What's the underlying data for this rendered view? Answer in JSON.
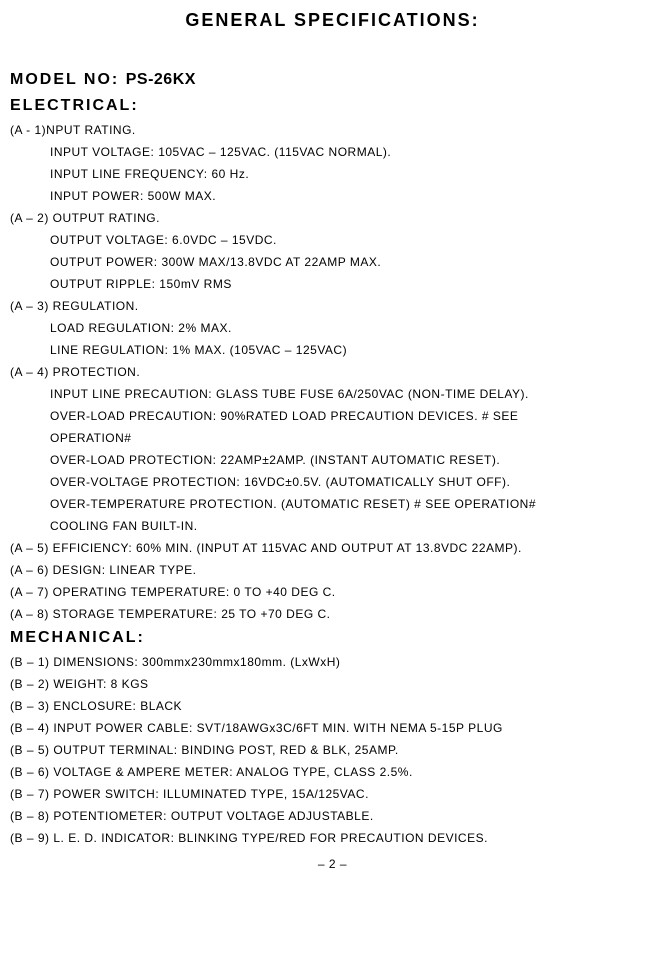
{
  "title": "GENERAL SPECIFICATIONS:",
  "model_label": "MODEL NO:",
  "model_value": "PS-26KX",
  "electrical_head": "ELECTRICAL:",
  "electrical": [
    {
      "label": "(A - 1)NPUT RATING.",
      "subs": [
        "INPUT VOLTAGE: 105VAC – 125VAC. (115VAC NORMAL).",
        "INPUT LINE FREQUENCY: 60 Hz.",
        "INPUT POWER: 500W MAX."
      ]
    },
    {
      "label": "(A – 2) OUTPUT RATING.",
      "subs": [
        "OUTPUT VOLTAGE: 6.0VDC – 15VDC.",
        "OUTPUT POWER: 300W MAX/13.8VDC AT 22AMP MAX.",
        "OUTPUT RIPPLE: 150mV RMS"
      ]
    },
    {
      "label": "(A – 3) REGULATION.",
      "subs": [
        "LOAD REGULATION: 2% MAX.",
        "LINE REGULATION: 1% MAX. (105VAC – 125VAC)"
      ]
    },
    {
      "label": "(A – 4) PROTECTION.",
      "subs": [
        "INPUT LINE PRECAUTION: GLASS TUBE FUSE 6A/250VAC (NON-TIME DELAY).",
        "OVER-LOAD PRECAUTION: 90%RATED LOAD PRECAUTION DEVICES. # SEE",
        "OPERATION#",
        "OVER-LOAD PROTECTION: 22AMP±2AMP. (INSTANT AUTOMATIC RESET).",
        "OVER-VOLTAGE PROTECTION: 16VDC±0.5V. (AUTOMATICALLY SHUT OFF).",
        "OVER-TEMPERATURE PROTECTION. (AUTOMATIC RESET) # SEE OPERATION#",
        "COOLING FAN BUILT-IN."
      ]
    },
    {
      "label": "(A – 5) EFFICIENCY: 60% MIN. (INPUT AT 115VAC AND OUTPUT AT 13.8VDC 22AMP).",
      "subs": []
    },
    {
      "label": "(A – 6) DESIGN: LINEAR TYPE.",
      "subs": []
    },
    {
      "label": "(A – 7) OPERATING TEMPERATURE: 0 TO +40 DEG C.",
      "subs": []
    },
    {
      "label": "(A – 8) STORAGE TEMPERATURE:    25 TO +70 DEG C.",
      "subs": []
    }
  ],
  "mechanical_head": "MECHANICAL:",
  "mechanical": [
    "(B – 1) DIMENSIONS: 300mmx230mmx180mm. (LxWxH)",
    "(B – 2) WEIGHT: 8 KGS",
    "(B – 3) ENCLOSURE: BLACK",
    "(B – 4) INPUT POWER CABLE: SVT/18AWGx3C/6FT MIN. WITH NEMA 5-15P PLUG",
    "(B – 5) OUTPUT TERMINAL: BINDING POST, RED & BLK, 25AMP.",
    "(B – 6) VOLTAGE & AMPERE METER: ANALOG TYPE, CLASS 2.5%.",
    "(B – 7) POWER SWITCH: ILLUMINATED TYPE, 15A/125VAC.",
    "(B – 8) POTENTIOMETER: OUTPUT VOLTAGE ADJUSTABLE.",
    "(B – 9) L. E. D. INDICATOR: BLINKING TYPE/RED FOR PRECAUTION DEVICES."
  ],
  "page_num": "– 2 –"
}
